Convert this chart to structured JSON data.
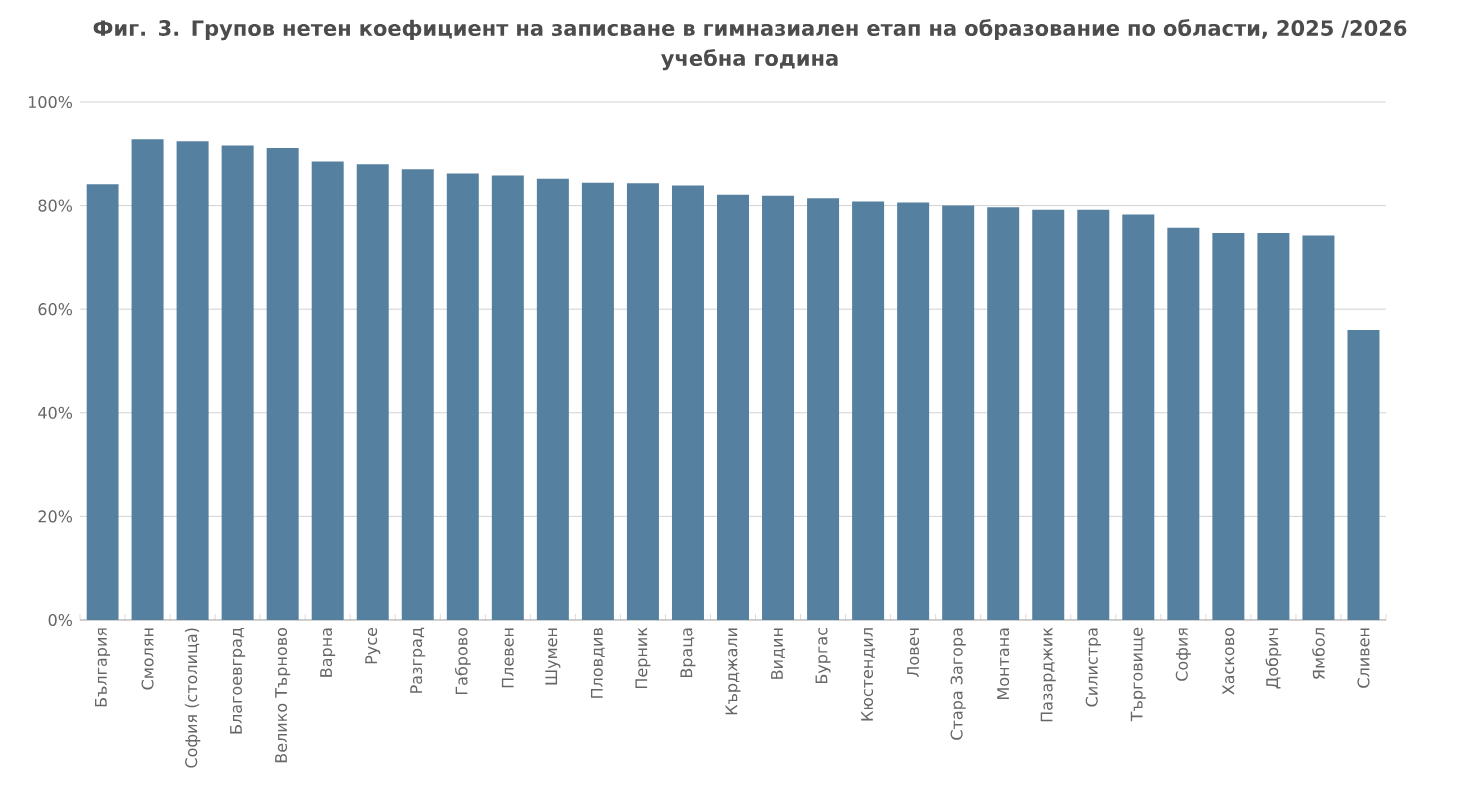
{
  "chart_data": {
    "type": "bar",
    "title": "Фиг. 3. Групов нетен коефициент на записване в гимназиален етап на образование по области, 2025 /2026 учебна година",
    "categories": [
      "България",
      "Смолян",
      "София (столица)",
      "Благоевград",
      "Велико Търново",
      "Варна",
      "Русе",
      "Разград",
      "Габрово",
      "Плевен",
      "Шумен",
      "Пловдив",
      "Перник",
      "Враца",
      "Кърджали",
      "Видин",
      "Бургас",
      "Кюстендил",
      "Ловеч",
      "Стара Загора",
      "Монтана",
      "Пазарджик",
      "Силистра",
      "Търговище",
      "София",
      "Хасково",
      "Добрич",
      "Ямбол",
      "Сливен"
    ],
    "values": [
      84.1,
      92.8,
      92.4,
      91.6,
      91.1,
      88.5,
      88.0,
      87.0,
      86.2,
      85.8,
      85.2,
      84.4,
      84.3,
      83.9,
      82.1,
      81.9,
      81.4,
      80.8,
      80.6,
      80.0,
      79.7,
      79.2,
      79.2,
      78.3,
      75.7,
      74.7,
      74.7,
      74.2,
      56.0
    ],
    "color": "#55809f",
    "ylim": [
      0,
      100
    ],
    "yticks": [
      {
        "value": 0,
        "label": "0%"
      },
      {
        "value": 20,
        "label": "20%"
      },
      {
        "value": 40,
        "label": "40%"
      },
      {
        "value": 60,
        "label": "60%"
      },
      {
        "value": 80,
        "label": "80%"
      },
      {
        "value": 100,
        "label": "100%"
      }
    ],
    "grid": "y"
  }
}
